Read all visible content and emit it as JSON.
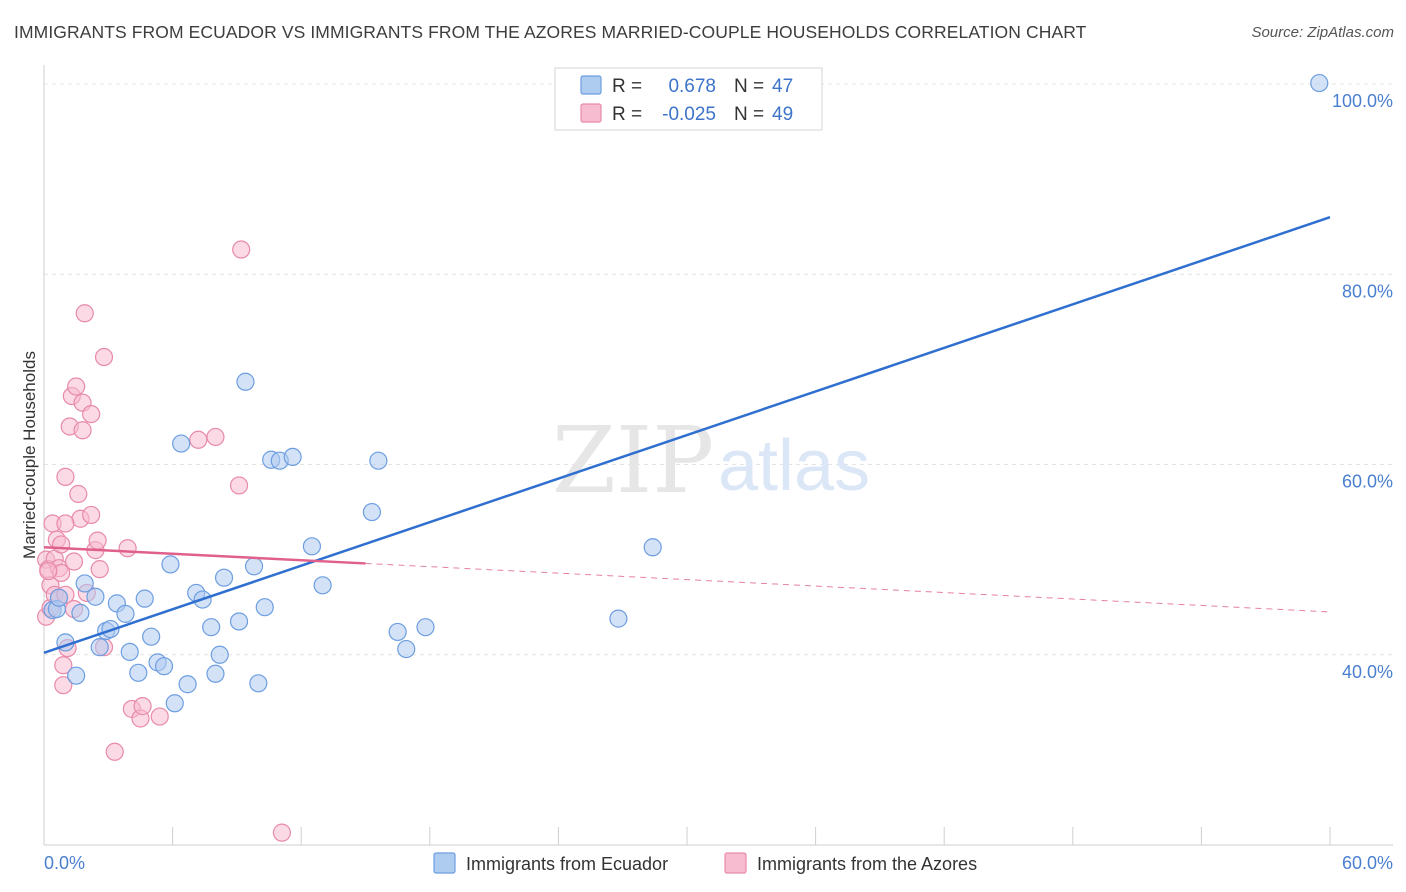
{
  "title": "IMMIGRANTS FROM ECUADOR VS IMMIGRANTS FROM THE AZORES MARRIED-COUPLE HOUSEHOLDS CORRELATION CHART",
  "source": "Source: ZipAtlas.com",
  "watermark": {
    "zip": "ZIP",
    "atlas": "atlas"
  },
  "legend": {
    "r_label": "R =",
    "n_label": "N =",
    "series": [
      {
        "r": "0.678",
        "n": "47"
      },
      {
        "r": "-0.025",
        "n": "49"
      }
    ]
  },
  "colors": {
    "ecuador_fill": "#aecbf0",
    "ecuador_stroke": "#6d9ee0",
    "ecuador_line": "#2f6fd0",
    "azores_fill": "#f7bcd0",
    "azores_stroke": "#e88aaa",
    "azores_line": "#e0608c",
    "tick_text": "#4a7fd0",
    "grid": "#e4e4e4"
  },
  "chart_data": {
    "type": "scatter",
    "title": "IMMIGRANTS FROM ECUADOR VS IMMIGRANTS FROM THE AZORES MARRIED-COUPLE HOUSEHOLDS CORRELATION CHART",
    "xlabel": "",
    "ylabel": "Married-couple Households",
    "xlim": [
      0,
      60
    ],
    "ylim": [
      20,
      102
    ],
    "x_tick_labels": [
      "0.0%",
      "60.0%"
    ],
    "y_ticks": [
      40,
      60,
      80,
      100
    ],
    "y_tick_labels": [
      "40.0%",
      "60.0%",
      "80.0%",
      "100.0%"
    ],
    "grid": true,
    "legend_position": "top-center",
    "series": [
      {
        "name": "Immigrants from Ecuador",
        "r": 0.678,
        "n": 47,
        "trend": {
          "x0": 0,
          "y0": 40.2,
          "x1": 60,
          "y1": 86.0,
          "dashed_from": null
        },
        "points": [
          [
            0.4,
            44.7
          ],
          [
            0.6,
            44.8
          ],
          [
            0.7,
            46.0
          ],
          [
            1.0,
            41.3
          ],
          [
            1.5,
            37.8
          ],
          [
            1.7,
            44.4
          ],
          [
            1.9,
            47.5
          ],
          [
            2.4,
            46.1
          ],
          [
            2.6,
            40.8
          ],
          [
            2.9,
            42.5
          ],
          [
            3.1,
            42.7
          ],
          [
            3.4,
            45.4
          ],
          [
            3.8,
            44.3
          ],
          [
            4.0,
            40.3
          ],
          [
            4.4,
            38.1
          ],
          [
            4.7,
            45.9
          ],
          [
            5.0,
            41.9
          ],
          [
            5.3,
            39.2
          ],
          [
            5.6,
            38.8
          ],
          [
            5.9,
            49.5
          ],
          [
            6.1,
            34.9
          ],
          [
            6.4,
            62.2
          ],
          [
            6.7,
            36.9
          ],
          [
            7.1,
            46.5
          ],
          [
            7.4,
            45.8
          ],
          [
            7.8,
            42.9
          ],
          [
            8.0,
            38.0
          ],
          [
            8.2,
            40.0
          ],
          [
            8.4,
            48.1
          ],
          [
            9.1,
            43.5
          ],
          [
            9.4,
            68.7
          ],
          [
            9.8,
            49.3
          ],
          [
            10.0,
            37.0
          ],
          [
            10.3,
            45.0
          ],
          [
            10.6,
            60.5
          ],
          [
            11.0,
            60.4
          ],
          [
            11.6,
            60.8
          ],
          [
            12.5,
            51.4
          ],
          [
            13.0,
            47.3
          ],
          [
            15.3,
            55.0
          ],
          [
            15.6,
            60.4
          ],
          [
            16.5,
            42.4
          ],
          [
            16.9,
            40.6
          ],
          [
            17.8,
            42.9
          ],
          [
            26.8,
            43.8
          ],
          [
            28.4,
            51.3
          ],
          [
            59.5,
            100.1
          ]
        ]
      },
      {
        "name": "Immigrants from the Azores",
        "r": -0.025,
        "n": 49,
        "trend": {
          "x0": 0,
          "y0": 51.3,
          "x1": 60,
          "y1": 44.5,
          "dashed_from": 15.0
        },
        "points": [
          [
            0.1,
            50.0
          ],
          [
            0.1,
            44.0
          ],
          [
            0.2,
            49.0
          ],
          [
            0.3,
            47.3
          ],
          [
            0.3,
            44.9
          ],
          [
            0.4,
            53.8
          ],
          [
            0.5,
            50.1
          ],
          [
            0.5,
            46.3
          ],
          [
            0.6,
            52.1
          ],
          [
            0.7,
            49.1
          ],
          [
            0.7,
            46.0
          ],
          [
            0.8,
            51.6
          ],
          [
            0.8,
            48.6
          ],
          [
            0.9,
            38.9
          ],
          [
            0.9,
            36.8
          ],
          [
            1.0,
            58.7
          ],
          [
            1.0,
            46.3
          ],
          [
            1.1,
            40.7
          ],
          [
            1.2,
            64.0
          ],
          [
            1.3,
            67.2
          ],
          [
            1.4,
            49.8
          ],
          [
            1.4,
            44.8
          ],
          [
            1.5,
            68.2
          ],
          [
            1.6,
            56.9
          ],
          [
            1.7,
            54.3
          ],
          [
            1.8,
            63.6
          ],
          [
            1.8,
            66.5
          ],
          [
            1.9,
            75.9
          ],
          [
            2.0,
            46.5
          ],
          [
            2.2,
            54.7
          ],
          [
            2.2,
            65.3
          ],
          [
            2.4,
            51.0
          ],
          [
            2.5,
            52.0
          ],
          [
            2.6,
            49.0
          ],
          [
            2.8,
            40.8
          ],
          [
            2.8,
            71.3
          ],
          [
            3.3,
            29.8
          ],
          [
            3.9,
            51.2
          ],
          [
            4.1,
            34.3
          ],
          [
            4.5,
            33.3
          ],
          [
            4.6,
            34.6
          ],
          [
            5.4,
            33.5
          ],
          [
            7.2,
            62.6
          ],
          [
            8.0,
            62.9
          ],
          [
            9.1,
            57.8
          ],
          [
            9.2,
            82.6
          ],
          [
            11.1,
            21.3
          ],
          [
            0.2,
            48.8
          ],
          [
            1.0,
            53.8
          ]
        ]
      }
    ]
  },
  "bottom_legend": [
    "Immigrants from Ecuador",
    "Immigrants from the Azores"
  ]
}
